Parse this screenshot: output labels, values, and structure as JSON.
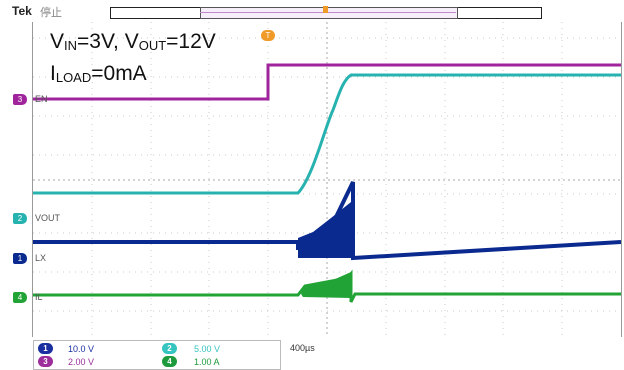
{
  "header": {
    "brand": "Tek",
    "state": "停止"
  },
  "annotations": {
    "vin_main": "V",
    "vin_sub": "IN",
    "vin_rest": "=3V, V",
    "vout_sub": "OUT",
    "vout_rest": "=12V",
    "iload_main": "I",
    "iload_sub": "LOAD",
    "iload_rest": "=0mA"
  },
  "channels": [
    {
      "label": "EN",
      "color": "#a0259c"
    },
    {
      "label": "VOUT",
      "color": "#26b3b0"
    },
    {
      "label": "LX",
      "color": "#0b2a8f"
    },
    {
      "label": "IL",
      "color": "#22a336"
    }
  ],
  "markers": {
    "ch3": "3",
    "ch2": "2",
    "ch1": "1",
    "ch4": "4",
    "trigger": "T"
  },
  "footer": {
    "rows": [
      {
        "num": "1",
        "value": "10.0 V",
        "color": "#1a2fa0"
      },
      {
        "num": "2",
        "value": "5.00 V",
        "color": "#36c4c0"
      },
      {
        "num": "3",
        "value": "2.00 V",
        "color": "#9d2f9c"
      },
      {
        "num": "4",
        "value": "1.00 A",
        "color": "#1d9a3b"
      }
    ],
    "timebase": "400µs"
  }
}
